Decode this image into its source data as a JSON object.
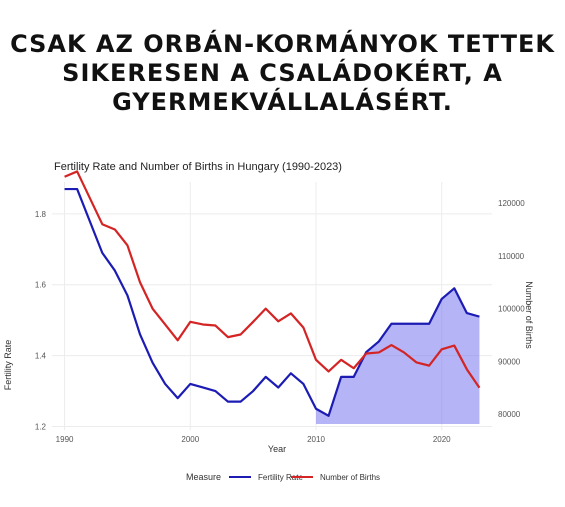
{
  "headline": {
    "line1": "CSAK AZ ORBÁN-KORMÁNYOK TETTEK",
    "line2": "SIKERESEN A CSALÁDOKÉRT, A",
    "line3": "GYERMEKVÁLLALÁSÉRT."
  },
  "chart_data": {
    "type": "line",
    "title": "Fertility Rate and Number of Births in Hungary (1990-2023)",
    "xlabel": "Year",
    "ylabel": "Fertility Rate",
    "y2label": "Number of Births",
    "xlim": [
      1989,
      2024
    ],
    "ylim": [
      1.19,
      1.89
    ],
    "y2lim": [
      77000,
      124000
    ],
    "xticks": [
      "1990",
      "2000",
      "2010",
      "2020"
    ],
    "yticks": [
      "1.2",
      "1.4",
      "1.6",
      "1.8"
    ],
    "y2ticks": [
      "80000",
      "90000",
      "100000",
      "110000",
      "120000"
    ],
    "grid": true,
    "legend_position": "bottom",
    "legend_title": "Measure",
    "shaded_region": {
      "from": 2010,
      "to": 2023,
      "color": "#7777ee"
    },
    "x": [
      1990,
      1991,
      1992,
      1993,
      1994,
      1995,
      1996,
      1997,
      1998,
      1999,
      2000,
      2001,
      2002,
      2003,
      2004,
      2005,
      2006,
      2007,
      2008,
      2009,
      2010,
      2011,
      2012,
      2013,
      2014,
      2015,
      2016,
      2017,
      2018,
      2019,
      2020,
      2021,
      2022,
      2023
    ],
    "series": [
      {
        "name": "Fertility Rate",
        "axis": "left",
        "color": "#1c1cb4",
        "values": [
          1.87,
          1.87,
          1.78,
          1.69,
          1.64,
          1.57,
          1.46,
          1.38,
          1.32,
          1.28,
          1.32,
          1.31,
          1.3,
          1.27,
          1.27,
          1.3,
          1.34,
          1.31,
          1.35,
          1.32,
          1.25,
          1.23,
          1.34,
          1.34,
          1.41,
          1.44,
          1.49,
          1.49,
          1.49,
          1.49,
          1.56,
          1.59,
          1.52,
          1.51
        ]
      },
      {
        "name": "Number of Births",
        "axis": "right",
        "color": "#d42424",
        "values": [
          125000,
          126000,
          121000,
          116000,
          115000,
          112000,
          105000,
          100000,
          97000,
          94000,
          97500,
          97000,
          96800,
          94600,
          95100,
          97500,
          100000,
          97600,
          99100,
          96400,
          90300,
          88100,
          90300,
          88700,
          91500,
          91700,
          93100,
          91700,
          89800,
          89200,
          92300,
          93000,
          88500,
          85000
        ]
      }
    ]
  }
}
